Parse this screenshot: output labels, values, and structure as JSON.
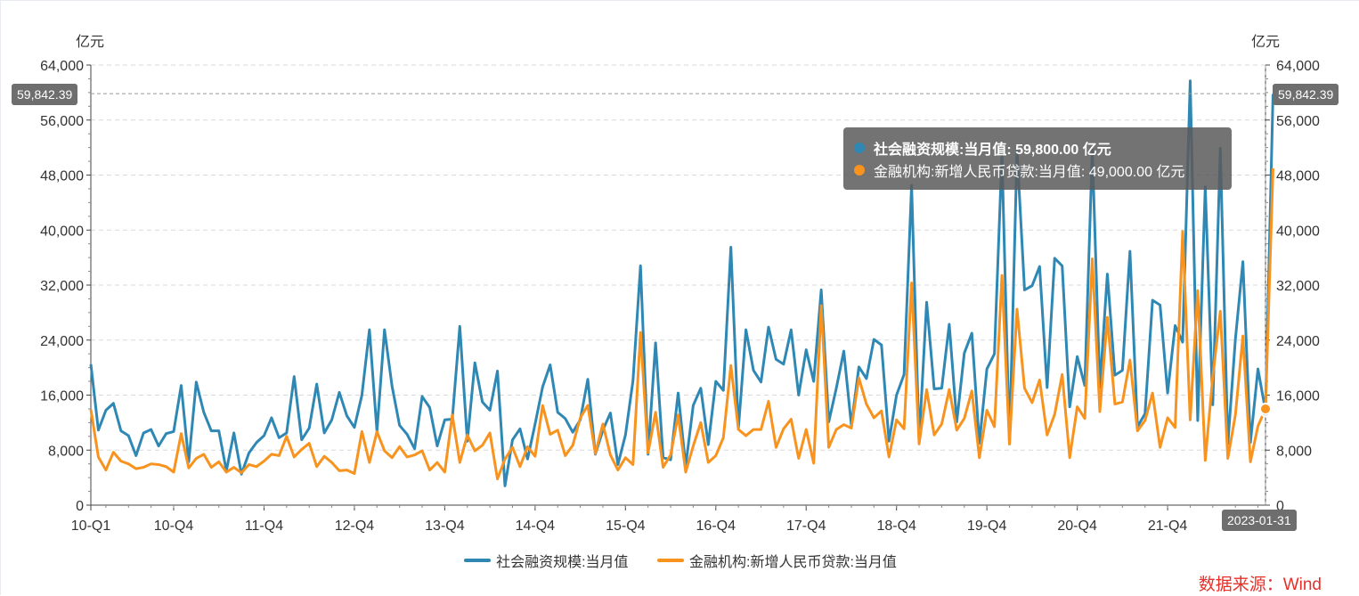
{
  "chart_data": {
    "type": "line",
    "left_unit": "亿元",
    "right_unit": "亿元",
    "ylim": [
      0,
      64000
    ],
    "y_ticks": [
      0,
      8000,
      16000,
      24000,
      32000,
      40000,
      48000,
      56000,
      64000
    ],
    "y_tick_labels": [
      "0",
      "8,000",
      "16,000",
      "24,000",
      "32,000",
      "40,000",
      "48,000",
      "56,000",
      "64,000"
    ],
    "x_ticks": [
      {
        "index": 0,
        "label": "10-Q1"
      },
      {
        "index": 11,
        "label": "10-Q4"
      },
      {
        "index": 23,
        "label": "11-Q4"
      },
      {
        "index": 35,
        "label": "12-Q4"
      },
      {
        "index": 47,
        "label": "13-Q4"
      },
      {
        "index": 59,
        "label": "14-Q4"
      },
      {
        "index": 71,
        "label": "15-Q4"
      },
      {
        "index": 83,
        "label": "16-Q4"
      },
      {
        "index": 95,
        "label": "17-Q4"
      },
      {
        "index": 107,
        "label": "18-Q4"
      },
      {
        "index": 119,
        "label": "19-Q4"
      },
      {
        "index": 131,
        "label": "20-Q4"
      },
      {
        "index": 143,
        "label": "21-Q4"
      }
    ],
    "x_count": 157,
    "series": [
      {
        "name": "社会融资规模:当月值",
        "color": "#2f88b4",
        "values": [
          20500,
          10900,
          13800,
          14800,
          10800,
          10100,
          7200,
          10500,
          11000,
          8600,
          10400,
          10700,
          17400,
          6300,
          17900,
          13500,
          10800,
          10800,
          5000,
          10500,
          4500,
          7600,
          9100,
          10100,
          12700,
          9800,
          10500,
          18700,
          9500,
          11200,
          17600,
          10500,
          12400,
          16400,
          13000,
          11300,
          16000,
          25500,
          10700,
          25500,
          17300,
          11600,
          10300,
          8200,
          15800,
          14200,
          8600,
          12400,
          12500,
          26000,
          9300,
          20700,
          15000,
          13800,
          19500,
          2800,
          9500,
          11100,
          6700,
          11800,
          17200,
          20400,
          13500,
          12600,
          10600,
          12400,
          18300,
          7400,
          10900,
          13400,
          5900,
          10200,
          18100,
          34800,
          7400,
          23600,
          6900,
          6600,
          16300,
          5700,
          14500,
          17000,
          8800,
          18000,
          16700,
          37500,
          11100,
          25500,
          19600,
          17900,
          25900,
          21200,
          20500,
          25500,
          16000,
          22600,
          18000,
          31300,
          12100,
          17000,
          22400,
          11600,
          20100,
          18400,
          24100,
          23300,
          9300,
          16000,
          19000,
          46500,
          9300,
          29500,
          16900,
          17000,
          26300,
          12100,
          22100,
          25000,
          9000,
          19800,
          22000,
          51000,
          8900,
          51600,
          31300,
          31900,
          34700,
          17100,
          35900,
          34800,
          14300,
          21600,
          17400,
          51700,
          17100,
          33600,
          18900,
          19600,
          36900,
          11400,
          13300,
          29800,
          29100,
          16300,
          26100,
          23700,
          61700,
          12300,
          46300,
          14600,
          51900,
          8900,
          24100,
          35400,
          9100,
          19800,
          13700,
          59800
        ]
      },
      {
        "name": "金融机构:新增人民币贷款:当月值",
        "color": "#f7931e",
        "values": [
          13900,
          7000,
          5100,
          7700,
          6400,
          6000,
          5300,
          5500,
          6000,
          5900,
          5600,
          4800,
          10400,
          5400,
          6800,
          7400,
          5500,
          6300,
          4800,
          5500,
          4700,
          5900,
          5600,
          6400,
          7400,
          7200,
          10000,
          7000,
          8100,
          9000,
          5600,
          7100,
          6200,
          5000,
          5100,
          4600,
          10700,
          6200,
          10700,
          7900,
          6900,
          8500,
          7000,
          7300,
          7900,
          5100,
          6200,
          4800,
          13100,
          6200,
          10200,
          7900,
          8700,
          10500,
          3800,
          6700,
          8400,
          5600,
          8500,
          7100,
          14500,
          10300,
          10900,
          7200,
          8700,
          12700,
          14500,
          7500,
          11800,
          7300,
          5100,
          6900,
          5900,
          25100,
          7600,
          13500,
          5500,
          7300,
          13100,
          4800,
          8600,
          12000,
          6200,
          7200,
          9800,
          20300,
          11000,
          10100,
          11000,
          11000,
          15100,
          8400,
          11100,
          12500,
          6800,
          11000,
          6100,
          29000,
          8400,
          11000,
          11700,
          11200,
          18500,
          14700,
          12700,
          13700,
          7000,
          12400,
          11100,
          32300,
          8900,
          16800,
          10200,
          11800,
          16800,
          10900,
          12600,
          16600,
          6900,
          13800,
          11400,
          33400,
          8900,
          28500,
          17000,
          14900,
          18200,
          10200,
          13200,
          19000,
          6900,
          14300,
          12600,
          35800,
          13600,
          27300,
          14700,
          15000,
          21100,
          10800,
          12300,
          16300,
          8400,
          12700,
          11300,
          39800,
          12400,
          31200,
          6500,
          18700,
          28200,
          6800,
          13100,
          24600,
          6300,
          11500,
          14000,
          49000
        ]
      }
    ]
  },
  "left_unit_label": "亿元",
  "right_unit_label": "亿元",
  "crosshair_value": "59,842.39",
  "crosshair_date": "2023-01-31",
  "tooltip": {
    "row1": "社会融资规模:当月值: 59,800.00  亿元",
    "row2": "金融机构:新增人民币贷款:当月值: 49,000.00  亿元"
  },
  "legend": {
    "item1": "社会融资规模:当月值",
    "item2": "金融机构:新增人民币贷款:当月值",
    "color1": "#2f88b4",
    "color2": "#f7931e"
  },
  "source_text": "数据来源：Wind"
}
